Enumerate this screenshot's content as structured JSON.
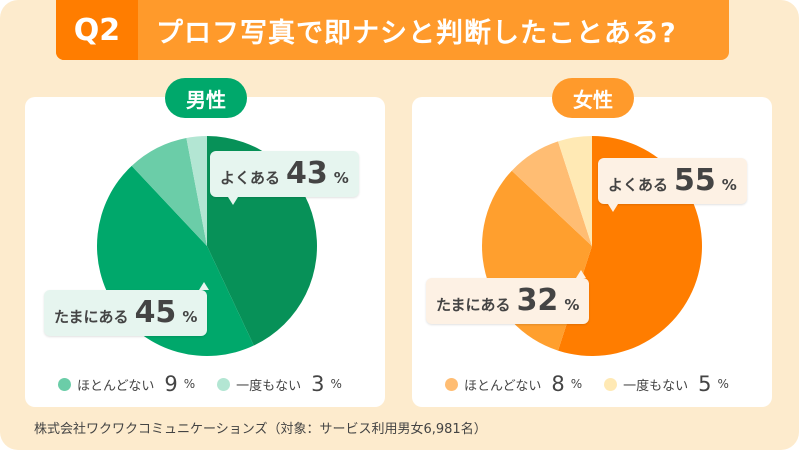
{
  "title": {
    "q": "Q2",
    "text": "プロフ写真で即ナシと判断したことある?"
  },
  "source": "株式会社ワクワクコミュニケーションズ（対象：サービス利用男女6,981名）",
  "chart_data": [
    {
      "type": "pie",
      "title": "男性",
      "badge_color": "#00a86b",
      "callout_bg": "#e6f5ef",
      "slices": [
        {
          "label": "よくある",
          "value": 43,
          "color": "#079158"
        },
        {
          "label": "たまにある",
          "value": 45,
          "color": "#00a86b"
        },
        {
          "label": "ほとんどない",
          "value": 9,
          "color": "#6bcda8"
        },
        {
          "label": "一度もない",
          "value": 3,
          "color": "#b3e6d3"
        }
      ]
    },
    {
      "type": "pie",
      "title": "女性",
      "badge_color": "#ff9a2b",
      "callout_bg": "#fdf1e4",
      "slices": [
        {
          "label": "よくある",
          "value": 55,
          "color": "#ff7d00"
        },
        {
          "label": "たまにある",
          "value": 32,
          "color": "#ff9f2e"
        },
        {
          "label": "ほとんどない",
          "value": 8,
          "color": "#ffbd73"
        },
        {
          "label": "一度もない",
          "value": 5,
          "color": "#ffe9b4"
        }
      ]
    }
  ],
  "unit": "%"
}
